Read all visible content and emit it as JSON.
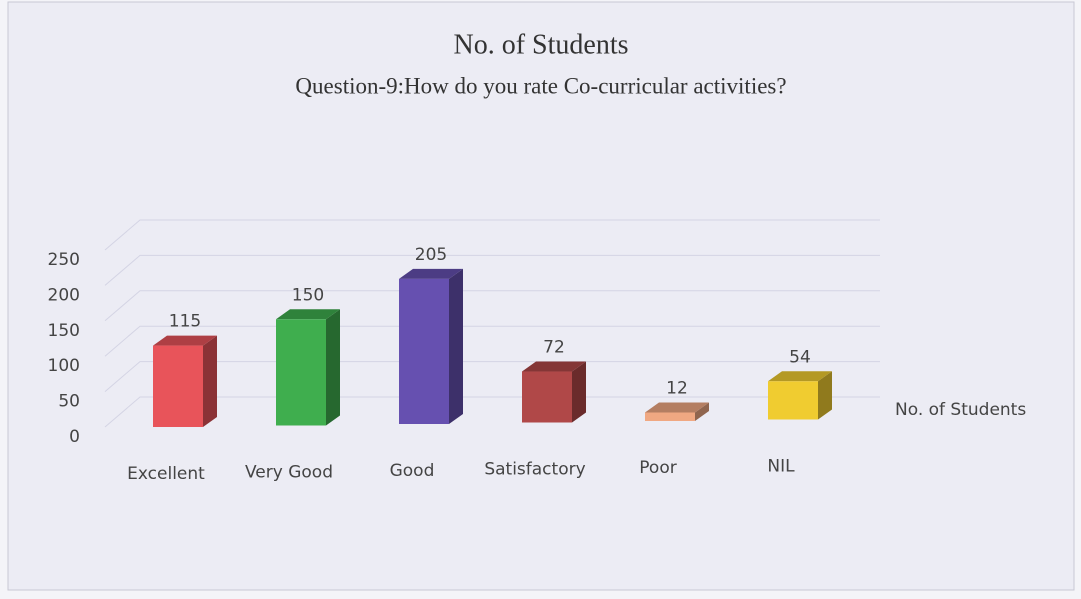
{
  "chart_data": {
    "type": "bar3d",
    "title": "No. of Students",
    "subtitle": "Question-9:How do you rate Co-curricular activities?",
    "categories": [
      "Excellent",
      "Very Good",
      "Good",
      "Satisfactory",
      "Poor",
      "NIL"
    ],
    "series": [
      {
        "name": "No. of Students",
        "values": [
          115,
          150,
          205,
          72,
          12,
          54
        ],
        "colors": [
          "#e8545a",
          "#3fae4e",
          "#6650b0",
          "#b04848",
          "#f0a882",
          "#f0cc30"
        ]
      }
    ],
    "ylim": [
      0,
      250
    ],
    "yticks": [
      0,
      50,
      100,
      150,
      200,
      250
    ],
    "grid": true,
    "legend": "right"
  }
}
